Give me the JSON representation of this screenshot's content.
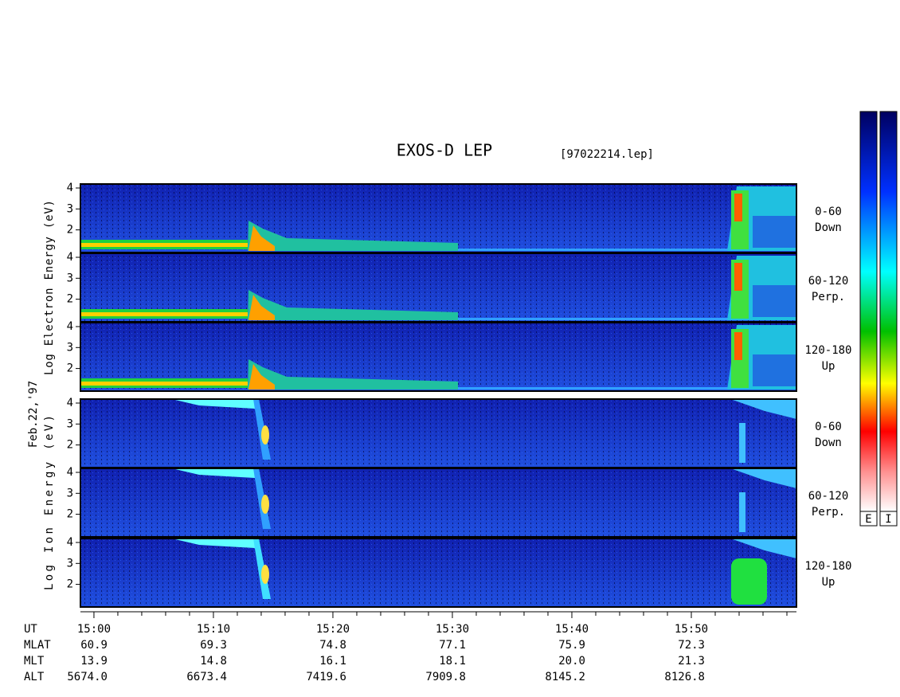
{
  "title": "EXOS-D LEP",
  "file": "[97022214.lep]",
  "date": "Feb.22,'97",
  "groups": [
    {
      "ylabel": "Log Electron Energy (eV)",
      "panels": [
        {
          "range": "0-60",
          "direction": "Down"
        },
        {
          "range": "60-120",
          "direction": "Perp."
        },
        {
          "range": "120-180",
          "direction": "Up"
        }
      ]
    },
    {
      "ylabel": "Log Ion Energy (eV)",
      "panels": [
        {
          "range": "0-60",
          "direction": "Down"
        },
        {
          "range": "60-120",
          "direction": "Perp."
        },
        {
          "range": "120-180",
          "direction": "Up"
        }
      ]
    }
  ],
  "ylim": [
    0.92,
    4.19
  ],
  "yticks": [
    2,
    3,
    4
  ],
  "xlim": [
    898.87,
    958.8
  ],
  "xticks": [
    {
      "value": 900,
      "label": "15:00"
    },
    {
      "value": 910,
      "label": "15:10"
    },
    {
      "value": 920,
      "label": "15:20"
    },
    {
      "value": 930,
      "label": "15:30"
    },
    {
      "value": 940,
      "label": "15:40"
    },
    {
      "value": 950,
      "label": "15:50"
    }
  ],
  "xminorticks": [
    902,
    904,
    906,
    908,
    912,
    914,
    916,
    918,
    922,
    924,
    926,
    928,
    932,
    934,
    936,
    938,
    942,
    944,
    946,
    948,
    952,
    954,
    956,
    958
  ],
  "table": {
    "ut_label": "UT",
    "rows": [
      {
        "label": "MLAT",
        "values": [
          "60.9",
          "69.3",
          "74.8",
          "77.1",
          "75.9",
          "72.3"
        ]
      },
      {
        "label": "MLT",
        "values": [
          "13.9",
          "14.8",
          "16.1",
          "18.1",
          "20.0",
          "21.3"
        ]
      },
      {
        "label": "ALT",
        "values": [
          "5674.0",
          "6673.4",
          "7419.6",
          "7909.8",
          "8145.2",
          "8126.8"
        ]
      }
    ]
  },
  "colorbars": [
    "E",
    "I"
  ]
}
